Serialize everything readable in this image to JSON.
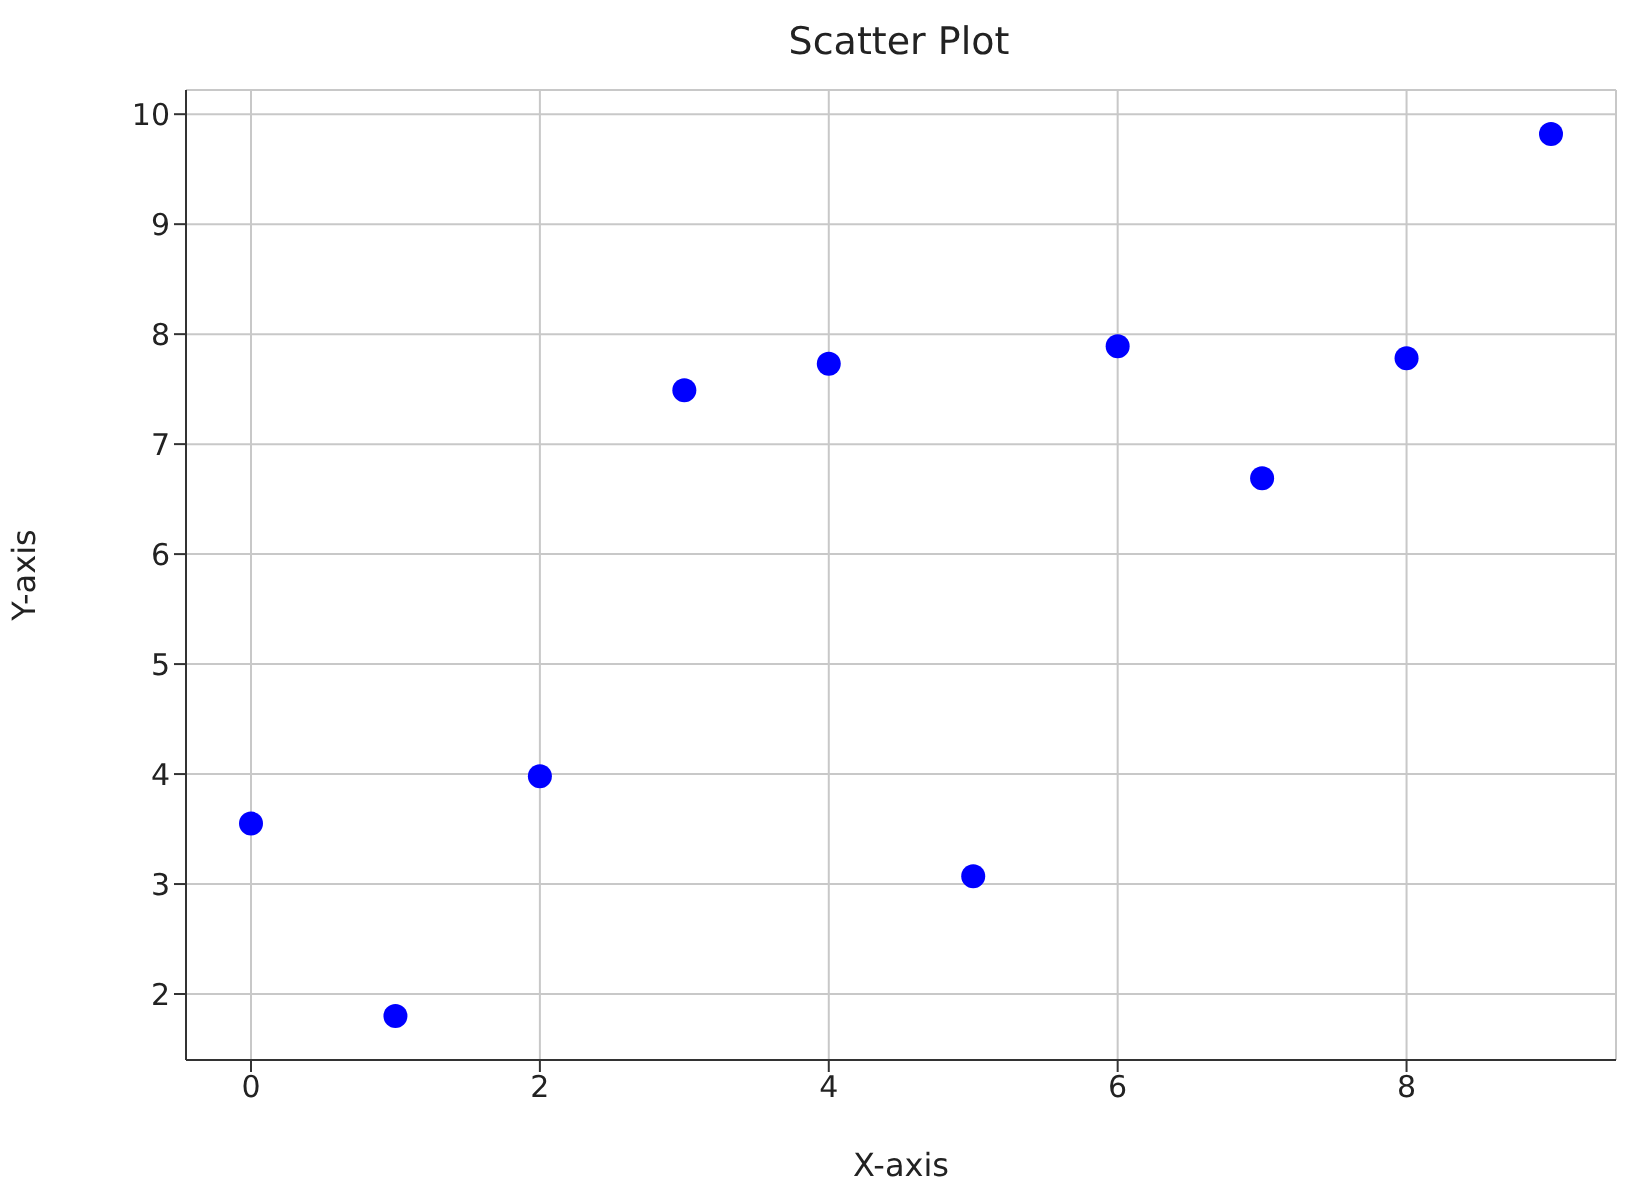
{
  "chart_data": {
    "type": "scatter",
    "title": "Scatter Plot",
    "xlabel": "X-axis",
    "ylabel": "Y-axis",
    "x": [
      0,
      1,
      2,
      3,
      4,
      5,
      6,
      7,
      8,
      9
    ],
    "values": [
      3.55,
      1.8,
      3.98,
      7.49,
      7.73,
      3.07,
      7.89,
      6.69,
      7.78,
      9.82
    ],
    "color": "#0000ff",
    "marker": "circle",
    "grid": true,
    "xlim": [
      -0.45,
      9.45
    ],
    "xticks": [
      0,
      2,
      4,
      6,
      8
    ],
    "ylim": [
      1.4,
      10.22
    ],
    "yticks": [
      2,
      3,
      4,
      5,
      6,
      7,
      8,
      9,
      10
    ]
  }
}
